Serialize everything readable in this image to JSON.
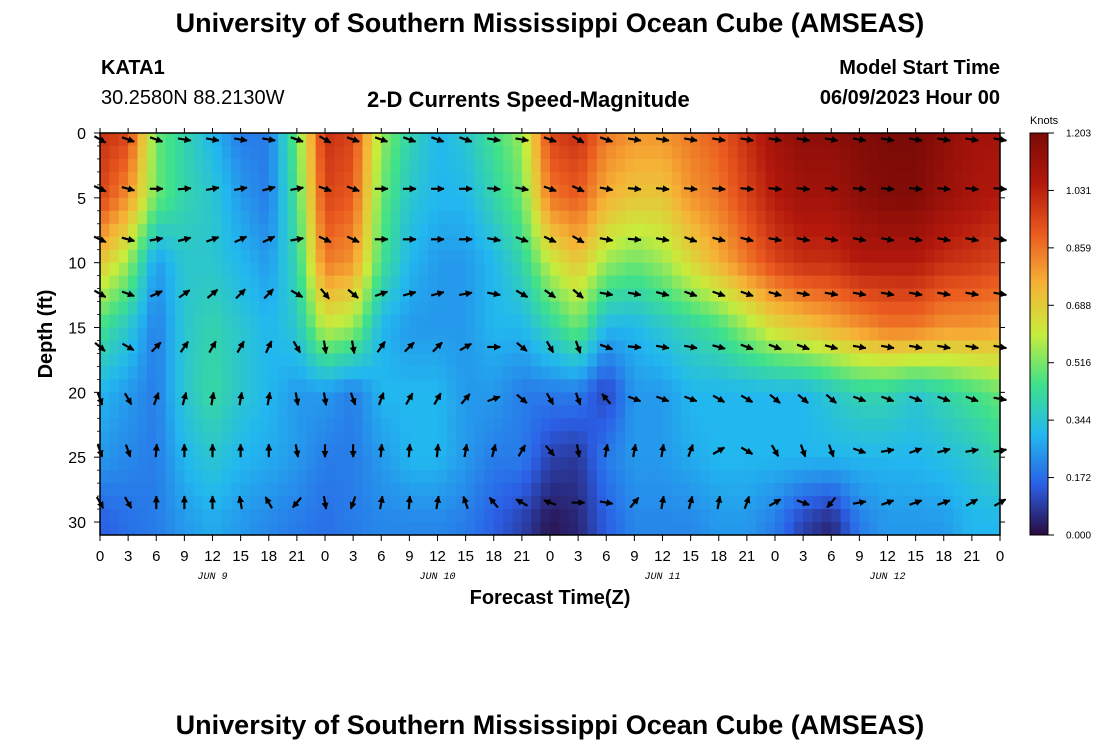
{
  "header": {
    "title": "University of Southern Mississippi Ocean Cube (AMSEAS)",
    "station": "KATA1",
    "coords": "30.2580N  88.2130W",
    "chart_title": "2-D Currents Speed-Magnitude",
    "model_start_label": "Model Start Time",
    "model_start_value": "06/09/2023 Hour 00"
  },
  "footer": {
    "title": "University of Southern Mississippi Ocean Cube (AMSEAS)"
  },
  "colorbar": {
    "unit": "Knots",
    "ticks": [
      "0.000",
      "0.172",
      "0.344",
      "0.516",
      "0.688",
      "0.859",
      "1.031",
      "1.203"
    ]
  },
  "colors": {
    "scale": [
      "#2a0a3f",
      "#2b5fe6",
      "#22b8ef",
      "#3fe18a",
      "#c8ec3c",
      "#f6b236",
      "#ea5a1f",
      "#b3180c",
      "#7a0a06"
    ]
  },
  "chart_data": {
    "type": "heatmap",
    "title": "2-D Currents Speed-Magnitude",
    "xlabel": "Forecast Time(Z)",
    "ylabel": "Depth (ft)",
    "x_unit": "hours since 06/09/2023 00Z",
    "xlim": [
      0,
      96
    ],
    "ylim": [
      31,
      0
    ],
    "value_range": [
      0.0,
      1.203
    ],
    "x_tick_labels": [
      "0",
      "3",
      "6",
      "9",
      "12",
      "15",
      "18",
      "21",
      "0",
      "3",
      "6",
      "9",
      "12",
      "15",
      "18",
      "21",
      "0",
      "3",
      "6",
      "9",
      "12",
      "15",
      "18",
      "21",
      "0",
      "3",
      "6",
      "9",
      "12",
      "15",
      "18",
      "21",
      "0"
    ],
    "y_ticks": [
      0,
      5,
      10,
      15,
      20,
      25,
      30
    ],
    "day_labels": [
      {
        "label": "JUN 9",
        "hour": 12
      },
      {
        "label": "JUN 10",
        "hour": 36
      },
      {
        "label": "JUN 11",
        "hour": 60
      },
      {
        "label": "JUN 12",
        "hour": 84
      }
    ],
    "arrow_depths": [
      0.5,
      4.3,
      8.2,
      12.4,
      16.5,
      20.5,
      24.5,
      28.5
    ],
    "arrow_hours": [
      0,
      3,
      6,
      9,
      12,
      15,
      18,
      21,
      24,
      27,
      30,
      33,
      36,
      39,
      42,
      45,
      48,
      51,
      54,
      57,
      60,
      63,
      66,
      69,
      72,
      75,
      78,
      81,
      84,
      87,
      90,
      93,
      96
    ],
    "speed_knots_by_depth": [
      {
        "depth": 0,
        "values": [
          1.0,
          0.95,
          0.5,
          0.4,
          0.3,
          0.2,
          0.2,
          0.5,
          1.0,
          0.95,
          0.55,
          0.4,
          0.3,
          0.35,
          0.45,
          0.55,
          0.95,
          1.0,
          0.85,
          0.8,
          0.8,
          0.85,
          0.9,
          1.0,
          1.1,
          1.15,
          1.15,
          1.18,
          1.2,
          1.2,
          1.15,
          1.1,
          1.1
        ]
      },
      {
        "depth": 5,
        "values": [
          0.95,
          0.8,
          0.5,
          0.4,
          0.35,
          0.25,
          0.2,
          0.45,
          0.95,
          0.9,
          0.5,
          0.35,
          0.3,
          0.3,
          0.4,
          0.5,
          0.85,
          0.9,
          0.75,
          0.7,
          0.7,
          0.8,
          0.85,
          0.95,
          1.05,
          1.1,
          1.1,
          1.15,
          1.18,
          1.18,
          1.12,
          1.08,
          1.05
        ]
      },
      {
        "depth": 10,
        "values": [
          0.7,
          0.55,
          0.25,
          0.35,
          0.35,
          0.3,
          0.25,
          0.4,
          0.85,
          0.8,
          0.45,
          0.3,
          0.25,
          0.25,
          0.3,
          0.4,
          0.6,
          0.7,
          0.55,
          0.5,
          0.55,
          0.65,
          0.75,
          0.85,
          0.95,
          1.0,
          1.0,
          1.05,
          1.05,
          1.05,
          1.0,
          0.98,
          0.95
        ]
      },
      {
        "depth": 15,
        "values": [
          0.45,
          0.35,
          0.2,
          0.35,
          0.4,
          0.35,
          0.3,
          0.35,
          0.6,
          0.55,
          0.3,
          0.25,
          0.25,
          0.25,
          0.3,
          0.3,
          0.4,
          0.5,
          0.3,
          0.3,
          0.35,
          0.4,
          0.45,
          0.55,
          0.65,
          0.7,
          0.75,
          0.8,
          0.85,
          0.85,
          0.8,
          0.8,
          0.78
        ]
      },
      {
        "depth": 20,
        "values": [
          0.3,
          0.25,
          0.2,
          0.35,
          0.42,
          0.35,
          0.3,
          0.25,
          0.25,
          0.2,
          0.3,
          0.3,
          0.3,
          0.25,
          0.25,
          0.2,
          0.2,
          0.2,
          0.1,
          0.25,
          0.25,
          0.3,
          0.3,
          0.3,
          0.3,
          0.3,
          0.35,
          0.4,
          0.4,
          0.35,
          0.4,
          0.45,
          0.5
        ]
      },
      {
        "depth": 25,
        "values": [
          0.25,
          0.22,
          0.2,
          0.3,
          0.35,
          0.3,
          0.28,
          0.25,
          0.2,
          0.2,
          0.25,
          0.3,
          0.3,
          0.25,
          0.2,
          0.2,
          0.1,
          0.08,
          0.2,
          0.25,
          0.25,
          0.28,
          0.3,
          0.3,
          0.3,
          0.3,
          0.3,
          0.3,
          0.3,
          0.3,
          0.32,
          0.35,
          0.4
        ]
      },
      {
        "depth": 30,
        "values": [
          0.15,
          0.18,
          0.2,
          0.25,
          0.28,
          0.25,
          0.22,
          0.2,
          0.18,
          0.2,
          0.22,
          0.22,
          0.22,
          0.2,
          0.15,
          0.1,
          0.02,
          0.05,
          0.15,
          0.22,
          0.22,
          0.22,
          0.25,
          0.25,
          0.2,
          0.1,
          0.05,
          0.2,
          0.25,
          0.25,
          0.25,
          0.3,
          0.3
        ]
      }
    ],
    "direction_deg_by_depth": [
      {
        "depth": 0.5,
        "values": [
          120,
          110,
          110,
          100,
          100,
          100,
          100,
          110,
          120,
          110,
          110,
          110,
          110,
          110,
          100,
          100,
          110,
          120,
          110,
          100,
          100,
          100,
          100,
          100,
          100,
          100,
          100,
          100,
          100,
          100,
          100,
          100,
          100
        ]
      },
      {
        "depth": 4.3,
        "values": [
          115,
          105,
          90,
          85,
          80,
          80,
          75,
          80,
          110,
          110,
          90,
          90,
          90,
          90,
          95,
          100,
          110,
          115,
          100,
          95,
          95,
          95,
          95,
          95,
          95,
          95,
          95,
          95,
          95,
          95,
          95,
          95,
          95
        ]
      },
      {
        "depth": 8.2,
        "values": [
          115,
          105,
          80,
          75,
          70,
          65,
          65,
          80,
          115,
          115,
          90,
          90,
          90,
          90,
          100,
          110,
          115,
          120,
          100,
          95,
          100,
          110,
          105,
          105,
          100,
          100,
          100,
          100,
          100,
          100,
          100,
          100,
          100
        ]
      },
      {
        "depth": 12.4,
        "values": [
          120,
          110,
          65,
          55,
          50,
          45,
          45,
          120,
          140,
          130,
          70,
          75,
          75,
          80,
          100,
          120,
          125,
          130,
          100,
          100,
          105,
          110,
          110,
          110,
          105,
          100,
          100,
          100,
          100,
          100,
          100,
          100,
          100
        ]
      },
      {
        "depth": 16.5,
        "values": [
          130,
          120,
          45,
          35,
          30,
          30,
          25,
          150,
          170,
          170,
          35,
          45,
          45,
          60,
          90,
          130,
          150,
          160,
          110,
          95,
          100,
          100,
          105,
          110,
          110,
          110,
          105,
          100,
          100,
          100,
          100,
          100,
          100
        ]
      },
      {
        "depth": 20.5,
        "values": [
          160,
          150,
          20,
          15,
          10,
          10,
          10,
          170,
          170,
          160,
          20,
          30,
          30,
          40,
          70,
          130,
          150,
          160,
          320,
          110,
          110,
          110,
          120,
          120,
          130,
          130,
          130,
          110,
          110,
          110,
          110,
          110,
          100
        ]
      },
      {
        "depth": 24.5,
        "values": [
          160,
          160,
          5,
          0,
          0,
          0,
          0,
          170,
          180,
          180,
          5,
          5,
          5,
          10,
          15,
          30,
          140,
          170,
          10,
          10,
          10,
          20,
          60,
          120,
          150,
          160,
          160,
          110,
          80,
          70,
          75,
          80,
          80
        ]
      },
      {
        "depth": 28.5,
        "values": [
          150,
          150,
          0,
          0,
          0,
          350,
          330,
          220,
          170,
          200,
          10,
          5,
          10,
          340,
          320,
          300,
          290,
          90,
          100,
          40,
          10,
          15,
          10,
          20,
          60,
          110,
          220,
          80,
          70,
          70,
          70,
          60,
          60
        ]
      }
    ]
  }
}
